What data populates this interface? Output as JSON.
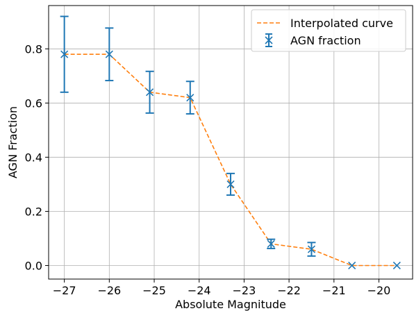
{
  "chart_data": {
    "type": "line",
    "title": "",
    "xlabel": "Absolute Magnitude",
    "ylabel": "AGN Fraction",
    "xlim": [
      -27.35,
      -19.25
    ],
    "ylim": [
      -0.05,
      0.96
    ],
    "grid": true,
    "legend_position": "top-right",
    "x_ticks": [
      -27,
      -26,
      -25,
      -24,
      -23,
      -22,
      -21,
      -20
    ],
    "x_tick_labels": [
      "−27",
      "−26",
      "−25",
      "−24",
      "−23",
      "−22",
      "−21",
      "−20"
    ],
    "y_ticks": [
      0.0,
      0.2,
      0.4,
      0.6,
      0.8
    ],
    "y_tick_labels": [
      "0.0",
      "0.2",
      "0.4",
      "0.6",
      "0.8"
    ],
    "series": [
      {
        "name": "Interpolated curve",
        "kind": "line",
        "style": "dashed",
        "color": "#ff7f0e",
        "x": [
          -27.0,
          -26.0,
          -25.1,
          -24.2,
          -23.3,
          -22.4,
          -21.5,
          -20.6,
          -19.6
        ],
        "y": [
          0.78,
          0.78,
          0.64,
          0.62,
          0.3,
          0.08,
          0.06,
          0.0,
          0.0
        ]
      },
      {
        "name": "AGN fraction",
        "kind": "errorbar",
        "marker": "x",
        "color": "#1f77b4",
        "x": [
          -27.0,
          -26.0,
          -25.1,
          -24.2,
          -23.3,
          -22.4,
          -21.5,
          -20.6,
          -19.6
        ],
        "y": [
          0.78,
          0.78,
          0.64,
          0.62,
          0.3,
          0.08,
          0.06,
          0.0,
          0.0
        ],
        "yerr": [
          0.14,
          0.097,
          0.077,
          0.06,
          0.04,
          0.017,
          0.025,
          0.0,
          0.0
        ]
      }
    ]
  }
}
